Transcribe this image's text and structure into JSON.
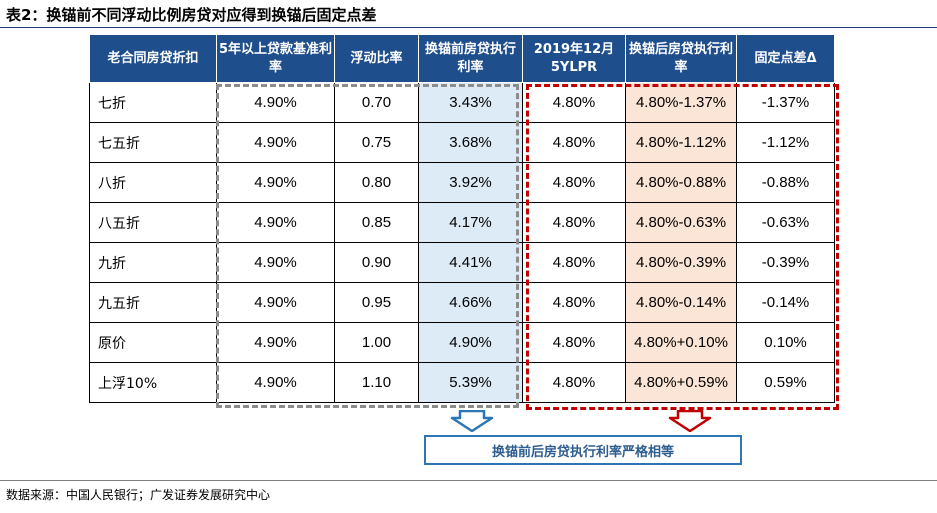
{
  "title": "表2：换锚前不同浮动比例房贷对应得到换锚后固定点差",
  "table": {
    "headers": [
      "老合同房贷折扣",
      "5年以上贷款基准利率",
      "浮动比率",
      "换锚前房贷执行利率",
      "2019年12月5YLPR",
      "换锚后房贷执行利率",
      "固定点差Δ"
    ],
    "rows": [
      [
        "七折",
        "4.90%",
        "0.70",
        "3.43%",
        "4.80%",
        "4.80%-1.37%",
        "-1.37%"
      ],
      [
        "七五折",
        "4.90%",
        "0.75",
        "3.68%",
        "4.80%",
        "4.80%-1.12%",
        "-1.12%"
      ],
      [
        "八折",
        "4.90%",
        "0.80",
        "3.92%",
        "4.80%",
        "4.80%-0.88%",
        "-0.88%"
      ],
      [
        "八五折",
        "4.90%",
        "0.85",
        "4.17%",
        "4.80%",
        "4.80%-0.63%",
        "-0.63%"
      ],
      [
        "九折",
        "4.90%",
        "0.90",
        "4.41%",
        "4.80%",
        "4.80%-0.39%",
        "-0.39%"
      ],
      [
        "九五折",
        "4.90%",
        "0.95",
        "4.66%",
        "4.80%",
        "4.80%-0.14%",
        "-0.14%"
      ],
      [
        "原价",
        "4.90%",
        "1.00",
        "4.90%",
        "4.80%",
        "4.80%+0.10%",
        "0.10%"
      ],
      [
        "上浮10%",
        "4.90%",
        "1.10",
        "5.39%",
        "4.80%",
        "4.80%+0.59%",
        "0.59%"
      ]
    ]
  },
  "note": "换锚前后房贷执行利率严格相等",
  "source": "数据来源：中国人民银行；广发证券发展研究中心",
  "colors": {
    "header_bg": "#1f4e8c",
    "pre_rate_col": "#ddebf7",
    "post_rate_col": "#fbe5d6",
    "grey_box": "#8c8c8c",
    "red_box": "#c00000",
    "note_border": "#2e75b6"
  }
}
